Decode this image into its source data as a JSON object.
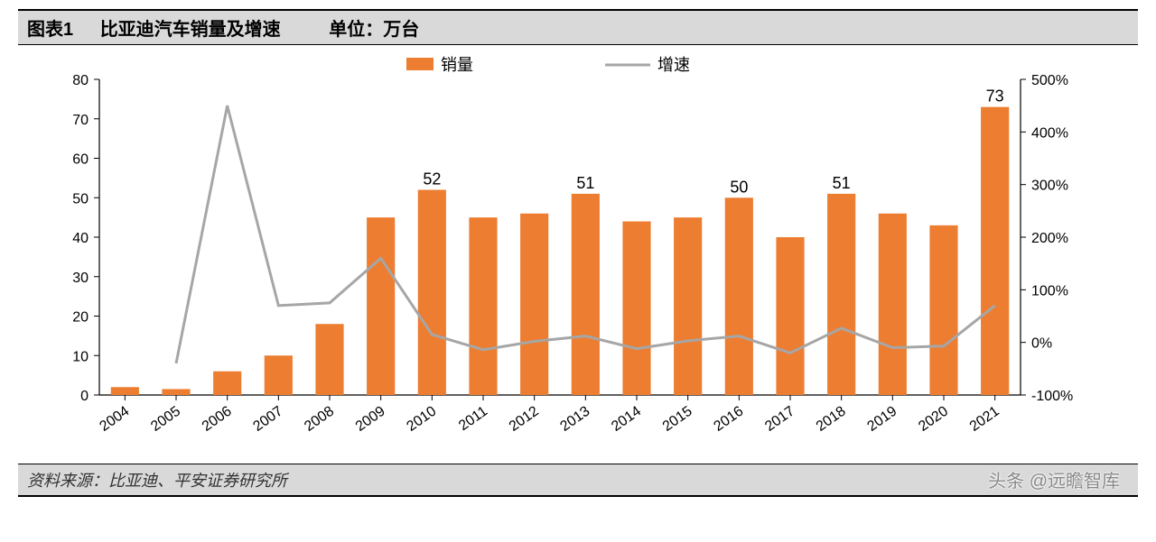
{
  "header": {
    "label": "图表1",
    "title": "比亚迪汽车销量及增速",
    "unit": "单位：万台"
  },
  "footer": {
    "source": "资料来源：比亚迪、平安证券研究所",
    "watermark": "头条 @远瞻智库"
  },
  "chart": {
    "type": "bar+line",
    "categories": [
      "2004",
      "2005",
      "2006",
      "2007",
      "2008",
      "2009",
      "2010",
      "2011",
      "2012",
      "2013",
      "2014",
      "2015",
      "2016",
      "2017",
      "2018",
      "2019",
      "2020",
      "2021"
    ],
    "series_bar": {
      "name": "销量",
      "color": "#ed7d31",
      "values": [
        2,
        1.5,
        6,
        10,
        18,
        45,
        52,
        45,
        46,
        51,
        44,
        45,
        50,
        40,
        51,
        46,
        43,
        73
      ],
      "labels": {
        "2010": "52",
        "2013": "51",
        "2016": "50",
        "2018": "51",
        "2021": "73"
      }
    },
    "series_line": {
      "name": "增速",
      "color": "#a6a6a6",
      "values": [
        null,
        -40,
        450,
        70,
        75,
        160,
        15,
        -14,
        2,
        12,
        -12,
        3,
        12,
        -20,
        27,
        -10,
        -7,
        70
      ]
    },
    "y_left": {
      "min": 0,
      "max": 80,
      "step": 10
    },
    "y_right": {
      "min": -100,
      "max": 500,
      "step": 100,
      "suffix": "%"
    },
    "plot": {
      "bg": "#ffffff",
      "axis_color": "#000000",
      "tick_color": "#000000",
      "font_size_tick": 16,
      "font_size_legend": 18,
      "font_size_datalabel": 18,
      "bar_width_ratio": 0.55,
      "line_width": 3,
      "legend_bar_w": 30,
      "legend_bar_h": 14,
      "legend_line_w": 50
    }
  }
}
